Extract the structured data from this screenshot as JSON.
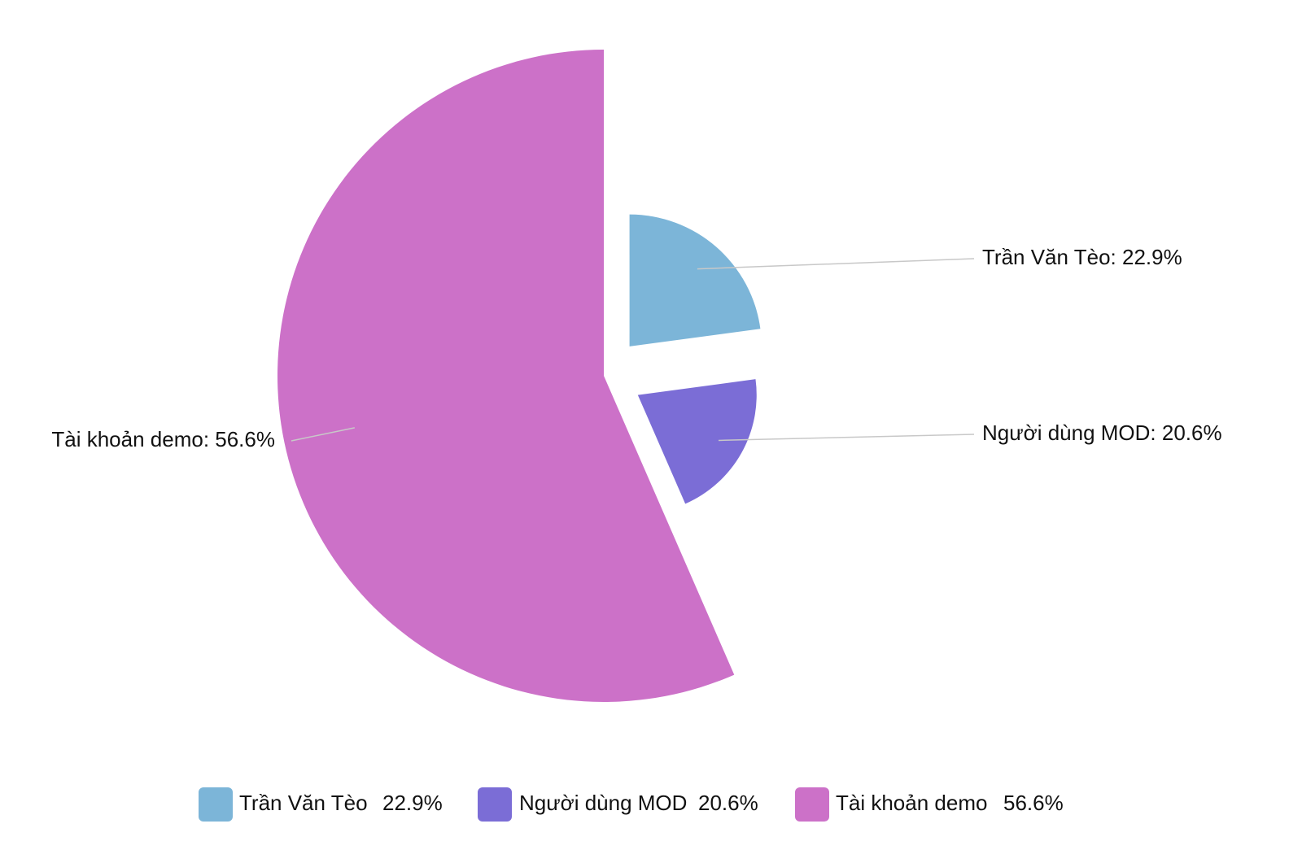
{
  "chart_data": {
    "type": "pie",
    "title": "",
    "start_angle_deg": 0,
    "direction": "clockwise",
    "radius_scale": "value",
    "slices": [
      {
        "name": "Trần Văn Tèo",
        "value": 22.9,
        "percent_label": "22.9%",
        "label": "Trần Văn Tèo: 22.9%",
        "color": "#7cb5d8"
      },
      {
        "name": "Người dùng MOD",
        "value": 20.6,
        "percent_label": "20.6%",
        "label": "Người dùng MOD: 20.6%",
        "color": "#7b6dd6"
      },
      {
        "name": "Tài khoản demo",
        "value": 56.6,
        "percent_label": "56.6%",
        "label": "Tài khoản demo: 56.6%",
        "color": "#cc71c8"
      }
    ],
    "legend": {
      "placement": "bottom-center",
      "show_values": true
    }
  }
}
